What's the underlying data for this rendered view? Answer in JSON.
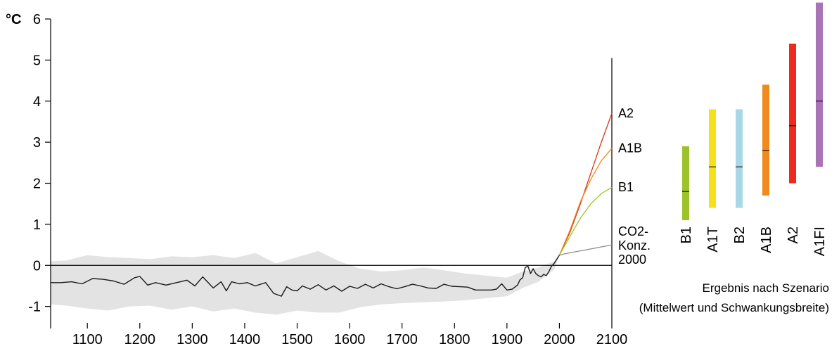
{
  "chart_data": [
    {
      "type": "line",
      "unit_label": "°C",
      "xlim": [
        1030,
        2100
      ],
      "ylim": [
        -1.4,
        6
      ],
      "x_ticks": [
        1100,
        1200,
        1300,
        1400,
        1500,
        1600,
        1700,
        1800,
        1900,
        2000,
        2100
      ],
      "y_ticks": [
        -1,
        0,
        1,
        2,
        3,
        4,
        5,
        6
      ],
      "colors": {
        "history": "#1a1a1a",
        "uncertainty_band": "#d9d9d9",
        "zero_line": "#000000",
        "A2": "#d9301a",
        "A1B": "#f08a1c",
        "B1": "#9cc42a",
        "CO2": "#8c8c8c"
      },
      "history": {
        "x": [
          1030,
          1050,
          1070,
          1090,
          1110,
          1130,
          1150,
          1170,
          1190,
          1200,
          1215,
          1230,
          1250,
          1270,
          1290,
          1305,
          1320,
          1340,
          1355,
          1365,
          1375,
          1390,
          1405,
          1420,
          1440,
          1455,
          1470,
          1480,
          1490,
          1500,
          1510,
          1525,
          1540,
          1555,
          1570,
          1585,
          1600,
          1615,
          1630,
          1645,
          1660,
          1675,
          1690,
          1705,
          1720,
          1735,
          1750,
          1765,
          1780,
          1795,
          1810,
          1825,
          1840,
          1855,
          1870,
          1880,
          1890,
          1900,
          1910,
          1920,
          1925,
          1930,
          1935,
          1940,
          1945,
          1950,
          1955,
          1960,
          1965,
          1970,
          1975,
          1980,
          1985,
          1990,
          2000
        ],
        "y": [
          -0.42,
          -0.42,
          -0.4,
          -0.45,
          -0.32,
          -0.34,
          -0.38,
          -0.46,
          -0.3,
          -0.27,
          -0.48,
          -0.42,
          -0.48,
          -0.42,
          -0.36,
          -0.5,
          -0.28,
          -0.55,
          -0.4,
          -0.62,
          -0.4,
          -0.45,
          -0.42,
          -0.5,
          -0.42,
          -0.68,
          -0.75,
          -0.52,
          -0.6,
          -0.62,
          -0.5,
          -0.58,
          -0.47,
          -0.6,
          -0.5,
          -0.63,
          -0.51,
          -0.56,
          -0.46,
          -0.55,
          -0.45,
          -0.52,
          -0.57,
          -0.52,
          -0.46,
          -0.5,
          -0.55,
          -0.56,
          -0.46,
          -0.51,
          -0.52,
          -0.53,
          -0.6,
          -0.6,
          -0.6,
          -0.58,
          -0.45,
          -0.6,
          -0.58,
          -0.48,
          -0.35,
          -0.3,
          -0.05,
          -0.02,
          -0.2,
          -0.08,
          -0.2,
          -0.25,
          -0.28,
          -0.22,
          -0.25,
          -0.15,
          -0.02,
          0.05,
          0.25
        ]
      },
      "uncertainty": {
        "x": [
          1030,
          1060,
          1100,
          1140,
          1180,
          1220,
          1260,
          1300,
          1340,
          1380,
          1420,
          1460,
          1500,
          1540,
          1580,
          1620,
          1660,
          1700,
          1740,
          1780,
          1820,
          1860,
          1900,
          1930,
          1960,
          1990,
          2000
        ],
        "upper": [
          0.1,
          0.12,
          0.25,
          0.2,
          0.18,
          0.15,
          0.22,
          0.2,
          0.25,
          0.18,
          0.3,
          0.05,
          0.2,
          0.35,
          0.1,
          -0.08,
          -0.15,
          -0.12,
          -0.05,
          -0.12,
          -0.2,
          -0.25,
          -0.3,
          -0.15,
          -0.05,
          0.1,
          0.25
        ],
        "lower": [
          -0.95,
          -0.98,
          -1.05,
          -1.1,
          -1.0,
          -0.98,
          -1.08,
          -1.0,
          -1.12,
          -1.05,
          -1.15,
          -1.2,
          -1.1,
          -1.15,
          -1.15,
          -1.02,
          -0.95,
          -0.92,
          -0.9,
          -0.88,
          -0.85,
          -0.8,
          -0.75,
          -0.55,
          -0.4,
          -0.1,
          0.25
        ]
      },
      "scenarios": [
        {
          "name": "A2",
          "x": [
            2000,
            2020,
            2040,
            2060,
            2080,
            2100
          ],
          "y": [
            0.25,
            0.8,
            1.5,
            2.25,
            3.0,
            3.7
          ]
        },
        {
          "name": "A1B",
          "x": [
            2000,
            2020,
            2040,
            2060,
            2080,
            2100
          ],
          "y": [
            0.25,
            0.85,
            1.55,
            2.1,
            2.55,
            2.85
          ]
        },
        {
          "name": "B1",
          "x": [
            2000,
            2020,
            2040,
            2060,
            2080,
            2100
          ],
          "y": [
            0.25,
            0.7,
            1.15,
            1.5,
            1.75,
            1.9
          ]
        },
        {
          "name": "CO2-\nKonz.\n2000",
          "x": [
            2000,
            2010,
            2030,
            2060,
            2100
          ],
          "y": [
            0.25,
            0.28,
            0.33,
            0.4,
            0.5
          ]
        }
      ],
      "endpoint_labels": [
        {
          "key": "A2",
          "lines": [
            "A2"
          ],
          "y": 3.6
        },
        {
          "key": "A1B",
          "lines": [
            "A1B"
          ],
          "y": 2.75
        },
        {
          "key": "B1",
          "lines": [
            "B1"
          ],
          "y": 1.8
        },
        {
          "key": "CO2",
          "lines": [
            "CO2-",
            "Konz.",
            "2000"
          ],
          "y": 0.72
        }
      ]
    },
    {
      "type": "range",
      "categories": [
        "B1",
        "A1T",
        "B2",
        "A1B",
        "A2",
        "A1FI"
      ],
      "ylim": [
        -1.4,
        6
      ],
      "ranges": [
        {
          "name": "B1",
          "low": 1.1,
          "high": 2.9,
          "mean": 1.8,
          "color": "#9cc42a"
        },
        {
          "name": "A1T",
          "low": 1.4,
          "high": 3.8,
          "mean": 2.4,
          "color": "#f5e11a"
        },
        {
          "name": "B2",
          "low": 1.4,
          "high": 3.8,
          "mean": 2.4,
          "color": "#a9d7e6"
        },
        {
          "name": "A1B",
          "low": 1.7,
          "high": 4.4,
          "mean": 2.8,
          "color": "#f08a1c"
        },
        {
          "name": "A2",
          "low": 2.0,
          "high": 5.4,
          "mean": 3.4,
          "color": "#ee2a1c"
        },
        {
          "name": "A1FI",
          "low": 2.4,
          "high": 6.4,
          "mean": 4.0,
          "color": "#a974b5"
        }
      ]
    }
  ],
  "note": {
    "line1": "Ergebnis nach Szenario",
    "line2": "(Mittelwert und Schwankungsbreite)"
  }
}
